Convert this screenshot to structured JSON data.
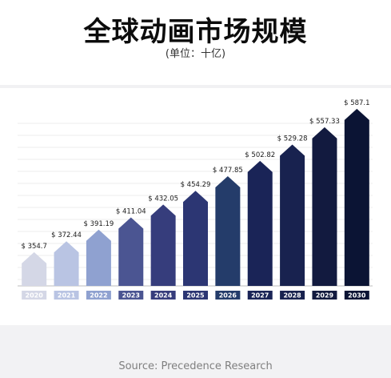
{
  "header": {
    "title": "全球动画市场规模",
    "subtitle": "(单位：十亿)"
  },
  "footer": {
    "source": "Source: Precedence Research"
  },
  "chart_data": {
    "type": "bar",
    "title": "全球动画市场规模",
    "subtitle": "(单位：十亿)",
    "xlabel": "",
    "ylabel": "",
    "categories": [
      "2020",
      "2021",
      "2022",
      "2023",
      "2024",
      "2025",
      "2026",
      "2027",
      "2028",
      "2029",
      "2030"
    ],
    "values": [
      354.7,
      372.44,
      391.19,
      411.04,
      432.05,
      454.29,
      477.85,
      502.82,
      529.28,
      557.33,
      587.1
    ],
    "value_labels": [
      "$ 354.7",
      "$ 372.44",
      "$ 391.19",
      "$ 411.04",
      "$ 432.05",
      "$ 454.29",
      "$ 477.85",
      "$ 502.82",
      "$ 529.28",
      "$ 557.33",
      "$ 587.1"
    ],
    "colors": [
      "#d4d7e6",
      "#b9c4e3",
      "#8fa1d0",
      "#4b5592",
      "#363d7c",
      "#2c3673",
      "#243c6a",
      "#1a2457",
      "#18224f",
      "#121a3f",
      "#0b1434"
    ],
    "grid": true,
    "legend": "none"
  }
}
